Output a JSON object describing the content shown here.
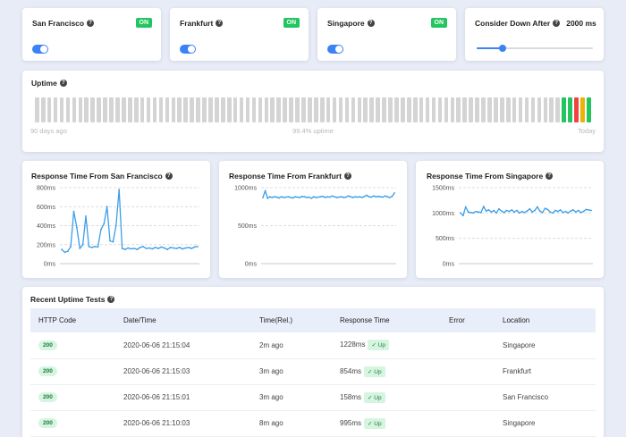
{
  "locations": [
    {
      "name": "San Francisco",
      "status": "ON"
    },
    {
      "name": "Frankfurt",
      "status": "ON"
    },
    {
      "name": "Singapore",
      "status": "ON"
    }
  ],
  "consider_down": {
    "label": "Consider Down After",
    "value": "2000 ms",
    "slider_fraction": 0.22
  },
  "uptime": {
    "title": "Uptime",
    "left_label": "90 days ago",
    "center_label": "99.4% uptime",
    "right_label": "Today",
    "bars": [
      "gray",
      "gray",
      "gray",
      "gray",
      "gray",
      "gray",
      "gray",
      "gray",
      "gray",
      "gray",
      "gray",
      "gray",
      "gray",
      "gray",
      "gray",
      "gray",
      "gray",
      "gray",
      "gray",
      "gray",
      "gray",
      "gray",
      "gray",
      "gray",
      "gray",
      "gray",
      "gray",
      "gray",
      "gray",
      "gray",
      "gray",
      "gray",
      "gray",
      "gray",
      "gray",
      "gray",
      "gray",
      "gray",
      "gray",
      "gray",
      "gray",
      "gray",
      "gray",
      "gray",
      "gray",
      "gray",
      "gray",
      "gray",
      "gray",
      "gray",
      "gray",
      "gray",
      "gray",
      "gray",
      "gray",
      "gray",
      "gray",
      "gray",
      "gray",
      "gray",
      "gray",
      "gray",
      "gray",
      "gray",
      "gray",
      "gray",
      "gray",
      "gray",
      "gray",
      "gray",
      "gray",
      "gray",
      "gray",
      "gray",
      "gray",
      "gray",
      "gray",
      "gray",
      "gray",
      "gray",
      "gray",
      "gray",
      "gray",
      "gray",
      "gray",
      "green",
      "green",
      "red",
      "yellow",
      "green"
    ],
    "colors": {
      "gray": "#d4d4d4",
      "green": "#22c55e",
      "red": "#ef4444",
      "yellow": "#eab308"
    }
  },
  "chart_data": [
    {
      "type": "line",
      "title": "Response Time From San Francisco",
      "yticks": [
        "800ms",
        "600ms",
        "400ms",
        "200ms",
        "0ms"
      ],
      "ylim": [
        0,
        800
      ],
      "grid": true,
      "color": "#3b9ee8",
      "values": [
        150,
        120,
        130,
        180,
        550,
        380,
        160,
        200,
        500,
        180,
        170,
        180,
        175,
        360,
        420,
        600,
        240,
        230,
        400,
        780,
        160,
        150,
        165,
        155,
        160,
        150,
        170,
        180,
        160,
        165,
        155,
        170,
        160,
        175,
        165,
        150,
        170,
        165,
        160,
        170,
        155,
        165,
        170,
        160,
        175,
        180
      ]
    },
    {
      "type": "line",
      "title": "Response Time From Frankfurt",
      "yticks": [
        "1000ms",
        "500ms",
        "0ms"
      ],
      "ylim": [
        0,
        1000
      ],
      "grid": true,
      "color": "#3b9ee8",
      "values": [
        870,
        960,
        860,
        880,
        870,
        880,
        875,
        865,
        880,
        870,
        875,
        880,
        870,
        865,
        880,
        875,
        870,
        885,
        880,
        870,
        875,
        860,
        880,
        870,
        875,
        880,
        885,
        870,
        880,
        875,
        890,
        880,
        870,
        875,
        880,
        870,
        875,
        890,
        880,
        870,
        880,
        875,
        880,
        870,
        885,
        900,
        880,
        875,
        890,
        880,
        885,
        880,
        875,
        890,
        880,
        870,
        885,
        930
      ]
    },
    {
      "type": "line",
      "title": "Response Time From Singapore",
      "yticks": [
        "1500ms",
        "1000ms",
        "500ms",
        "0ms"
      ],
      "ylim": [
        0,
        1500
      ],
      "grid": true,
      "color": "#3b9ee8",
      "values": [
        1000,
        950,
        1120,
        1020,
        1010,
        1000,
        1030,
        1020,
        1010,
        1130,
        1040,
        1060,
        1020,
        1050,
        1000,
        1080,
        1040,
        1010,
        1050,
        1030,
        1060,
        1020,
        1050,
        1000,
        1030,
        1010,
        1040,
        1080,
        1020,
        1050,
        1120,
        1040,
        1010,
        1090,
        1070,
        1020,
        1000,
        1050,
        1030,
        1060,
        1010,
        1030,
        1000,
        1040,
        1060,
        1020,
        1050,
        1010,
        1030,
        1070,
        1060,
        1050
      ]
    }
  ],
  "recent": {
    "title": "Recent Uptime Tests",
    "columns": [
      "HTTP Code",
      "Date/Time",
      "Time(Rel.)",
      "Response Time",
      "Error",
      "Location"
    ],
    "up_label": "✓ Up",
    "rows": [
      {
        "code": "200",
        "datetime": "2020-06-06 21:15:04",
        "rel": "2m ago",
        "response": "1228ms",
        "error": "",
        "location": "Singapore"
      },
      {
        "code": "200",
        "datetime": "2020-06-06 21:15:03",
        "rel": "3m ago",
        "response": "854ms",
        "error": "",
        "location": "Frankfurt"
      },
      {
        "code": "200",
        "datetime": "2020-06-06 21:15:01",
        "rel": "3m ago",
        "response": "158ms",
        "error": "",
        "location": "San Francisco"
      },
      {
        "code": "200",
        "datetime": "2020-06-06 21:10:03",
        "rel": "8m ago",
        "response": "995ms",
        "error": "",
        "location": "Singapore"
      }
    ]
  }
}
